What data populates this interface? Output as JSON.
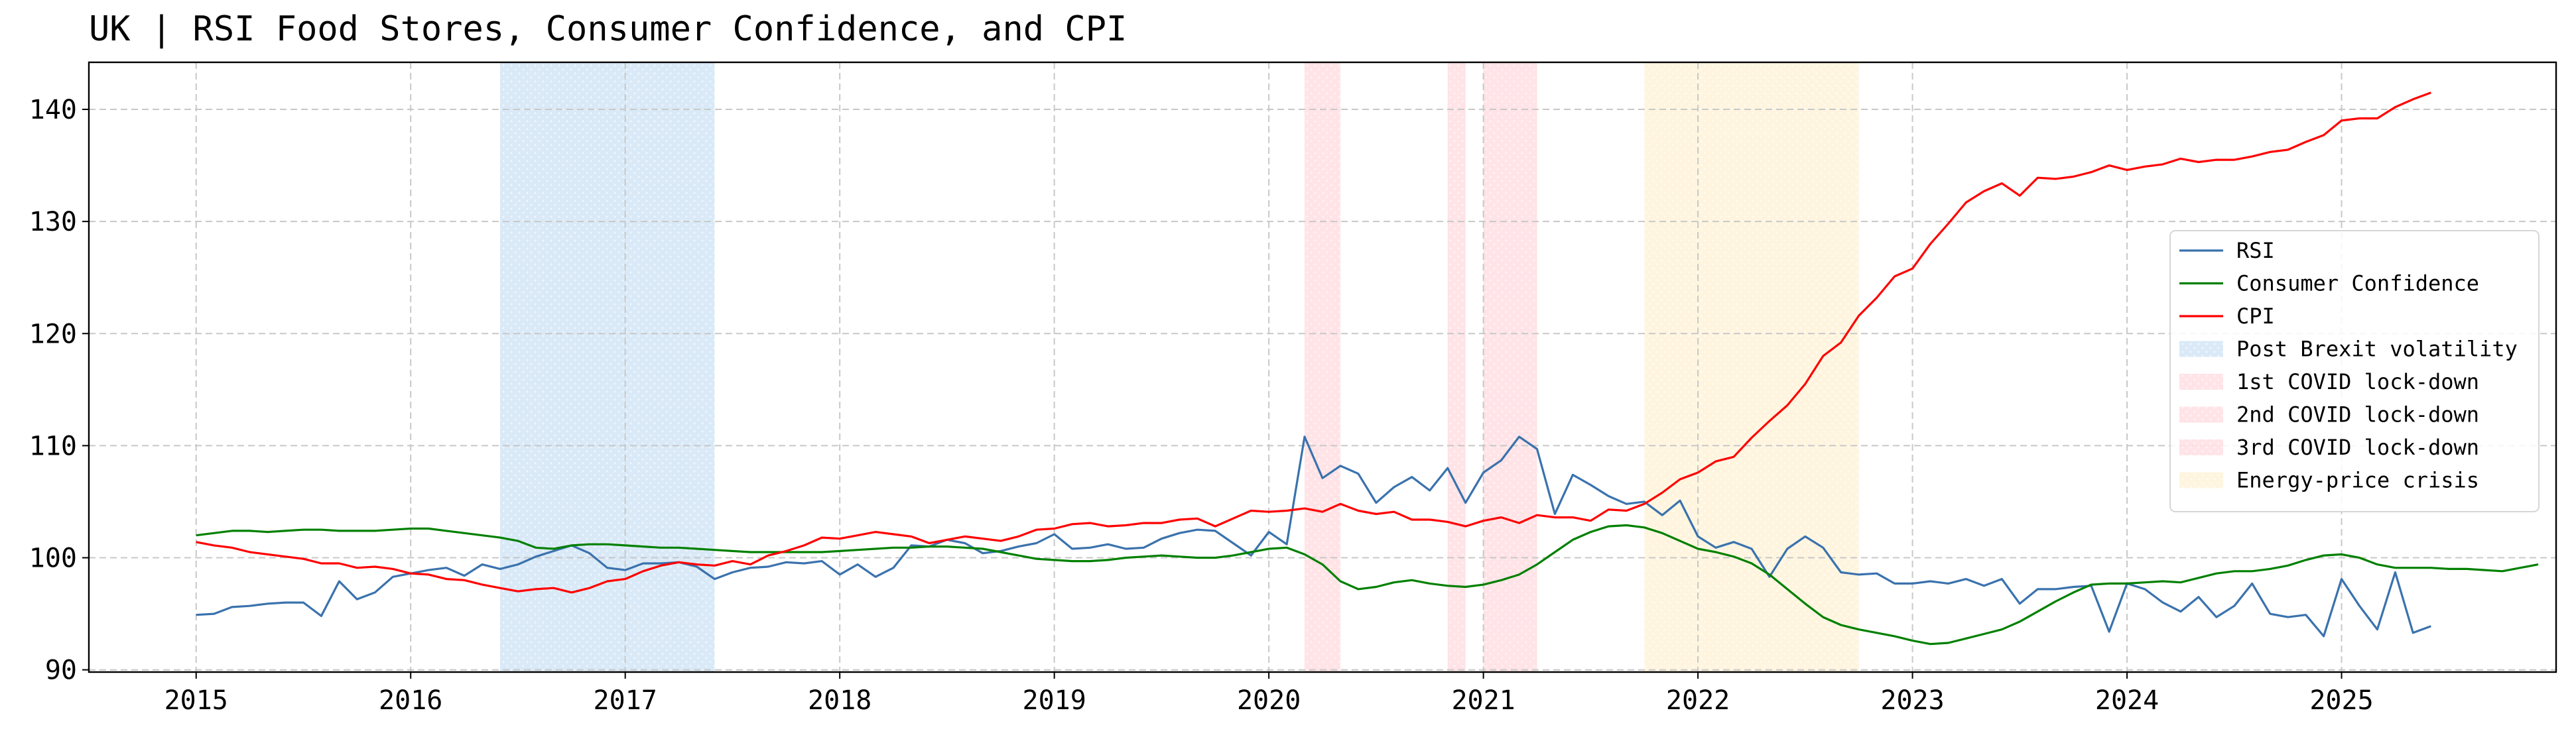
{
  "chart_data": {
    "type": "line",
    "title": "UK | RSI Food Stores, Consumer Confidence, and CPI",
    "xlabel": "",
    "ylabel": "",
    "xlim": [
      "2014-07-01",
      "2026-01-01"
    ],
    "ylim": [
      89.8,
      144.2
    ],
    "x_ticks": [
      "2015",
      "2016",
      "2017",
      "2018",
      "2019",
      "2020",
      "2021",
      "2022",
      "2023",
      "2024",
      "2025"
    ],
    "y_ticks": [
      90,
      100,
      110,
      120,
      130,
      140
    ],
    "grid": true,
    "legend_position": "center-right",
    "colors": {
      "RSI": "#3a72ad",
      "Consumer Confidence": "#008000",
      "CPI": "#ff0000",
      "Post Brexit volatility": "#aacfee",
      "COVID lock-down": "#ffc0c8",
      "Energy-price crisis": "#ffe9b8"
    },
    "shaded_periods": [
      {
        "name": "Post Brexit volatility",
        "start": "2016-06-01",
        "end": "2017-06-01",
        "color": "#aacfee"
      },
      {
        "name": "1st COVID lock-down",
        "start": "2020-03-01",
        "end": "2020-05-01",
        "color": "#ffc0c8"
      },
      {
        "name": "2nd COVID lock-down",
        "start": "2020-11-01",
        "end": "2020-12-01",
        "color": "#ffc0c8"
      },
      {
        "name": "3rd COVID lock-down",
        "start": "2021-01-01",
        "end": "2021-04-01",
        "color": "#ffc0c8"
      },
      {
        "name": "Energy-price crisis",
        "start": "2021-10-01",
        "end": "2022-10-01",
        "color": "#ffe9b8"
      }
    ],
    "series": [
      {
        "name": "RSI",
        "color": "#3a72ad",
        "start": "2015-01",
        "values": [
          94.9,
          95.0,
          95.6,
          95.7,
          95.9,
          96.0,
          96.0,
          94.8,
          97.9,
          96.3,
          96.9,
          98.3,
          98.6,
          98.9,
          99.1,
          98.4,
          99.4,
          99.0,
          99.4,
          100.1,
          100.6,
          101.1,
          100.4,
          99.1,
          98.9,
          99.5,
          99.5,
          99.6,
          99.2,
          98.1,
          98.7,
          99.1,
          99.2,
          99.6,
          99.5,
          99.7,
          98.5,
          99.4,
          98.3,
          99.1,
          101.1,
          101.0,
          101.6,
          101.3,
          100.4,
          100.6,
          101.0,
          101.3,
          102.1,
          100.8,
          100.9,
          101.2,
          100.8,
          100.9,
          101.7,
          102.2,
          102.5,
          102.4,
          101.3,
          100.2,
          102.3,
          101.2,
          110.8,
          107.1,
          108.2,
          107.5,
          104.9,
          106.3,
          107.2,
          106.0,
          108.0,
          104.9,
          107.6,
          108.7,
          110.8,
          109.7,
          103.9,
          107.4,
          106.5,
          105.5,
          104.8,
          105.0,
          103.8,
          105.1,
          101.9,
          100.9,
          101.4,
          100.8,
          98.3,
          100.8,
          101.9,
          100.9,
          98.7,
          98.5,
          98.6,
          97.7,
          97.7,
          97.9,
          97.7,
          98.1,
          97.5,
          98.1,
          95.9,
          97.2,
          97.2,
          97.4,
          97.5,
          93.4,
          97.7,
          97.2,
          96.0,
          95.2,
          96.5,
          94.7,
          95.7,
          97.7,
          95.0,
          94.7,
          94.9,
          93.0,
          98.1,
          95.7,
          93.6,
          98.7,
          93.3,
          93.9
        ]
      },
      {
        "name": "Consumer Confidence",
        "color": "#008000",
        "start": "2015-01",
        "values": [
          102.0,
          102.2,
          102.4,
          102.4,
          102.3,
          102.4,
          102.5,
          102.5,
          102.4,
          102.4,
          102.4,
          102.5,
          102.6,
          102.6,
          102.4,
          102.2,
          102.0,
          101.8,
          101.5,
          100.9,
          100.8,
          101.1,
          101.2,
          101.2,
          101.1,
          101.0,
          100.9,
          100.9,
          100.8,
          100.7,
          100.6,
          100.5,
          100.5,
          100.5,
          100.5,
          100.5,
          100.6,
          100.7,
          100.8,
          100.9,
          100.9,
          101.0,
          101.0,
          100.9,
          100.8,
          100.5,
          100.2,
          99.9,
          99.8,
          99.7,
          99.7,
          99.8,
          100.0,
          100.1,
          100.2,
          100.1,
          100.0,
          100.0,
          100.2,
          100.5,
          100.8,
          100.9,
          100.3,
          99.4,
          97.9,
          97.2,
          97.4,
          97.8,
          98.0,
          97.7,
          97.5,
          97.4,
          97.6,
          98.0,
          98.5,
          99.4,
          100.5,
          101.6,
          102.3,
          102.8,
          102.9,
          102.7,
          102.2,
          101.5,
          100.8,
          100.5,
          100.1,
          99.5,
          98.5,
          97.2,
          95.9,
          94.7,
          94.0,
          93.6,
          93.3,
          93.0,
          92.6,
          92.3,
          92.4,
          92.8,
          93.2,
          93.6,
          94.3,
          95.2,
          96.1,
          96.9,
          97.6,
          97.7,
          97.7,
          97.8,
          97.9,
          97.8,
          98.2,
          98.6,
          98.8,
          98.8,
          99.0,
          99.3,
          99.8,
          100.2,
          100.3,
          100.0,
          99.4,
          99.1,
          99.1,
          99.1,
          99.0,
          99.0,
          98.9,
          98.8,
          99.1,
          99.4
        ]
      },
      {
        "name": "CPI",
        "color": "#ff0000",
        "start": "2015-01",
        "values": [
          101.4,
          101.1,
          100.9,
          100.5,
          100.3,
          100.1,
          99.9,
          99.5,
          99.5,
          99.1,
          99.2,
          99.0,
          98.6,
          98.5,
          98.1,
          98.0,
          97.6,
          97.3,
          97.0,
          97.2,
          97.3,
          96.9,
          97.3,
          97.9,
          98.1,
          98.8,
          99.3,
          99.6,
          99.4,
          99.3,
          99.7,
          99.4,
          100.2,
          100.6,
          101.1,
          101.8,
          101.7,
          102.0,
          102.3,
          102.1,
          101.9,
          101.3,
          101.6,
          101.9,
          101.7,
          101.5,
          101.9,
          102.5,
          102.6,
          103.0,
          103.1,
          102.8,
          102.9,
          103.1,
          103.1,
          103.4,
          103.5,
          102.8,
          103.5,
          104.2,
          104.1,
          104.2,
          104.4,
          104.1,
          104.8,
          104.2,
          103.9,
          104.1,
          103.4,
          103.4,
          103.2,
          102.8,
          103.3,
          103.6,
          103.1,
          103.8,
          103.6,
          103.6,
          103.3,
          104.3,
          104.2,
          104.8,
          105.8,
          107.0,
          107.6,
          108.6,
          109.0,
          110.7,
          112.2,
          113.6,
          115.5,
          118.0,
          119.2,
          121.6,
          123.2,
          125.1,
          125.8,
          128.0,
          129.8,
          131.7,
          132.7,
          133.4,
          132.3,
          133.9,
          133.8,
          134.0,
          134.4,
          135.0,
          134.6,
          134.9,
          135.1,
          135.6,
          135.3,
          135.5,
          135.5,
          135.8,
          136.2,
          136.4,
          137.1,
          137.7,
          139.0,
          139.2,
          139.2,
          140.2,
          140.9,
          141.5
        ]
      }
    ]
  },
  "legend": {
    "items": [
      {
        "label": "RSI",
        "kind": "line",
        "color": "#3a72ad"
      },
      {
        "label": "Consumer Confidence",
        "kind": "line",
        "color": "#008000"
      },
      {
        "label": "CPI",
        "kind": "line",
        "color": "#ff0000"
      },
      {
        "label": "Post Brexit volatility",
        "kind": "patch",
        "color": "#aacfee"
      },
      {
        "label": "1st COVID lock-down",
        "kind": "patch",
        "color": "#ffc0c8"
      },
      {
        "label": "2nd COVID lock-down",
        "kind": "patch",
        "color": "#ffc0c8"
      },
      {
        "label": "3rd COVID lock-down",
        "kind": "patch",
        "color": "#ffc0c8"
      },
      {
        "label": "Energy-price crisis",
        "kind": "patch",
        "color": "#ffe9b8"
      }
    ]
  }
}
